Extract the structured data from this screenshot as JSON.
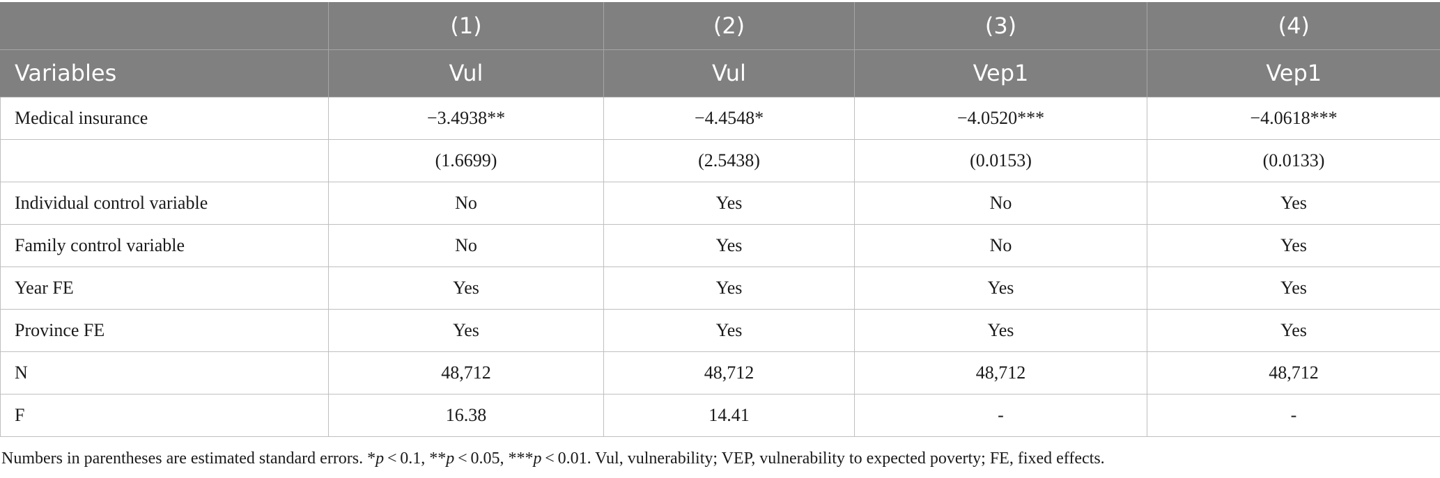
{
  "table": {
    "header_numbers": [
      "",
      "(1)",
      "(2)",
      "(3)",
      "(4)"
    ],
    "header_labels": [
      "Variables",
      "Vul",
      "Vul",
      "Vep1",
      "Vep1"
    ],
    "rows": [
      [
        "Medical insurance",
        "−3.4938**",
        "−4.4548*",
        "−4.0520***",
        "−4.0618***"
      ],
      [
        "",
        "(1.6699)",
        "(2.5438)",
        "(0.0153)",
        "(0.0133)"
      ],
      [
        "Individual control variable",
        "No",
        "Yes",
        "No",
        "Yes"
      ],
      [
        "Family control variable",
        "No",
        "Yes",
        "No",
        "Yes"
      ],
      [
        "Year FE",
        "Yes",
        "Yes",
        "Yes",
        "Yes"
      ],
      [
        "Province FE",
        "Yes",
        "Yes",
        "Yes",
        "Yes"
      ],
      [
        "N",
        "48,712",
        "48,712",
        "48,712",
        "48,712"
      ],
      [
        "F",
        "16.38",
        "14.41",
        "-",
        "-"
      ]
    ]
  },
  "footnote": {
    "part1": "Numbers in parentheses are estimated standard errors. *",
    "p1": "p",
    "part2": " < 0.1, **",
    "p2": "p",
    "part3": " < 0.05, ***",
    "p3": "p",
    "part4": " < 0.01. Vul, vulnerability; VEP, vulnerability to expected poverty; FE, fixed effects."
  },
  "colors": {
    "header_bg": "#808080",
    "header_text": "#ffffff",
    "grid": "#bfbfbf"
  }
}
